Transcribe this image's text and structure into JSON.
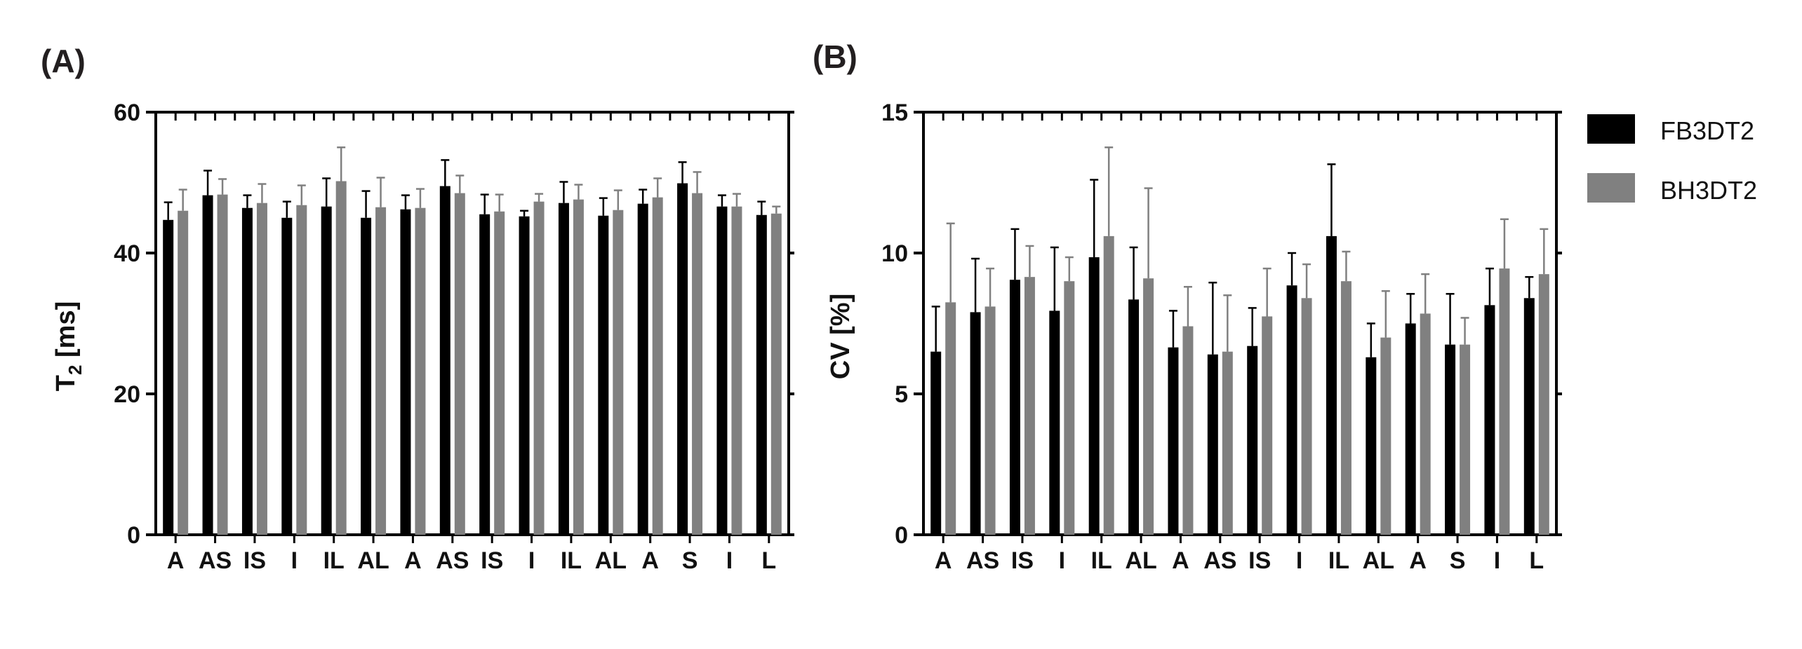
{
  "chart_data": [
    {
      "panel_label": "(A)",
      "type": "bar",
      "ylabel": "T",
      "ylabel_sub": "2",
      "ylabel_unit": "[ms]",
      "ylim": [
        0,
        60
      ],
      "yticks": [
        "0",
        "20",
        "40",
        "60"
      ],
      "categories": [
        "A",
        "AS",
        "IS",
        "I",
        "IL",
        "AL",
        "A",
        "AS",
        "IS",
        "I",
        "IL",
        "AL",
        "A",
        "S",
        "I",
        "L"
      ],
      "series": [
        {
          "name": "FB3DT2",
          "color": "#000000",
          "values": [
            44.7,
            48.2,
            46.4,
            45.0,
            46.6,
            45.0,
            46.2,
            49.5,
            45.5,
            45.2,
            47.1,
            45.3,
            47.0,
            49.9,
            46.6,
            45.4
          ],
          "errors": [
            2.5,
            3.5,
            1.8,
            2.3,
            4.0,
            3.8,
            2.0,
            3.7,
            2.8,
            0.8,
            3.0,
            2.5,
            2.0,
            3.0,
            1.6,
            1.9
          ]
        },
        {
          "name": "BH3DT2",
          "color": "#808080",
          "values": [
            46.0,
            48.3,
            47.1,
            46.8,
            50.2,
            46.5,
            46.4,
            48.5,
            45.9,
            47.3,
            47.6,
            46.1,
            47.9,
            48.5,
            46.6,
            45.6
          ],
          "errors": [
            3.0,
            2.2,
            2.7,
            2.8,
            4.8,
            4.2,
            2.7,
            2.5,
            2.4,
            1.1,
            2.1,
            2.8,
            2.7,
            3.0,
            1.8,
            1.0
          ]
        }
      ]
    },
    {
      "panel_label": "(B)",
      "type": "bar",
      "ylabel": "CV [%]",
      "ylim": [
        0,
        15
      ],
      "yticks": [
        "0",
        "5",
        "10",
        "15"
      ],
      "categories": [
        "A",
        "AS",
        "IS",
        "I",
        "IL",
        "AL",
        "A",
        "AS",
        "IS",
        "I",
        "IL",
        "AL",
        "A",
        "S",
        "I",
        "L"
      ],
      "series": [
        {
          "name": "FB3DT2",
          "color": "#000000",
          "values": [
            6.5,
            7.9,
            9.05,
            7.95,
            9.85,
            8.35,
            6.65,
            6.4,
            6.7,
            8.85,
            10.6,
            6.3,
            7.5,
            6.75,
            8.15,
            8.4
          ],
          "errors": [
            1.6,
            1.9,
            1.8,
            2.25,
            2.75,
            1.85,
            1.3,
            2.55,
            1.35,
            1.15,
            2.55,
            1.2,
            1.05,
            1.8,
            1.3,
            0.75
          ]
        },
        {
          "name": "BH3DT2",
          "color": "#808080",
          "values": [
            8.25,
            8.1,
            9.15,
            9.0,
            10.6,
            9.1,
            7.4,
            6.5,
            7.75,
            8.4,
            9.0,
            7.0,
            7.85,
            6.75,
            9.45,
            9.25
          ],
          "errors": [
            2.8,
            1.35,
            1.1,
            0.85,
            3.15,
            3.2,
            1.4,
            2.0,
            1.7,
            1.2,
            1.05,
            1.65,
            1.4,
            0.95,
            1.75,
            1.6
          ]
        }
      ]
    }
  ],
  "legend": {
    "entries": [
      {
        "name": "FB3DT2",
        "color": "#000000"
      },
      {
        "name": "BH3DT2",
        "color": "#808080"
      }
    ],
    "position": "top-right"
  }
}
